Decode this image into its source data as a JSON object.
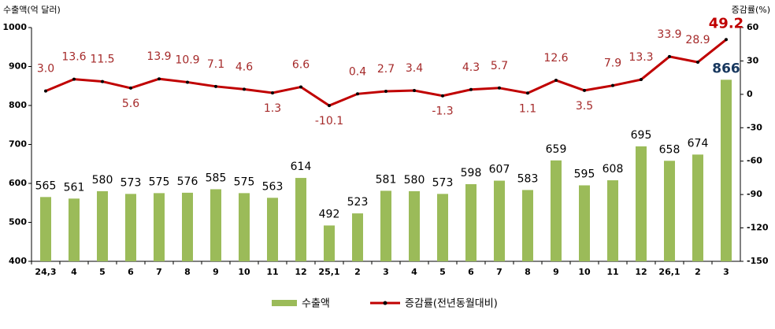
{
  "chart_data": {
    "type": "bar_line",
    "y_label": "수출액(억 달러)",
    "y2_label": "증감률(%)",
    "categories": [
      "24,3",
      "4",
      "5",
      "6",
      "7",
      "8",
      "9",
      "10",
      "11",
      "12",
      "25,1",
      "2",
      "3",
      "4",
      "5",
      "6",
      "7",
      "8",
      "9",
      "10",
      "11",
      "12",
      "26,1",
      "2",
      "3"
    ],
    "series": [
      {
        "name": "수출액",
        "type": "bar",
        "color": "#9bbb59",
        "values": [
          565,
          561,
          580,
          573,
          575,
          576,
          585,
          575,
          563,
          614,
          492,
          523,
          581,
          580,
          573,
          598,
          607,
          583,
          659,
          595,
          608,
          695,
          658,
          674,
          866
        ]
      },
      {
        "name": "증감률(전년동월대비)",
        "type": "line",
        "axis": "y2",
        "color": "#c00000",
        "values": [
          3.0,
          13.6,
          11.5,
          5.6,
          13.9,
          10.9,
          7.1,
          4.6,
          1.3,
          6.6,
          -10.1,
          0.4,
          2.7,
          3.4,
          -1.3,
          4.3,
          5.7,
          1.1,
          12.6,
          3.5,
          7.9,
          13.3,
          33.9,
          28.9,
          49.2
        ],
        "value_labels": [
          "3.0",
          "13.6",
          "11.5",
          "5.6",
          "13.9",
          "10.9",
          "7.1",
          "4.6",
          "1.3",
          "6.6",
          "-10.1",
          "0.4",
          "2.7",
          "3.4",
          "-1.3",
          "4.3",
          "5.7",
          "1.1",
          "12.6",
          "3.5",
          "7.9",
          "13.3",
          "33.9",
          "28.9",
          "49.2"
        ]
      }
    ],
    "ylim": [
      400,
      1000
    ],
    "yticks": [
      400,
      500,
      600,
      700,
      800,
      900,
      1000
    ],
    "y2lim": [
      -150,
      60
    ],
    "y2ticks": [
      -150,
      -120,
      -90,
      -60,
      -30,
      0,
      30,
      60
    ]
  }
}
